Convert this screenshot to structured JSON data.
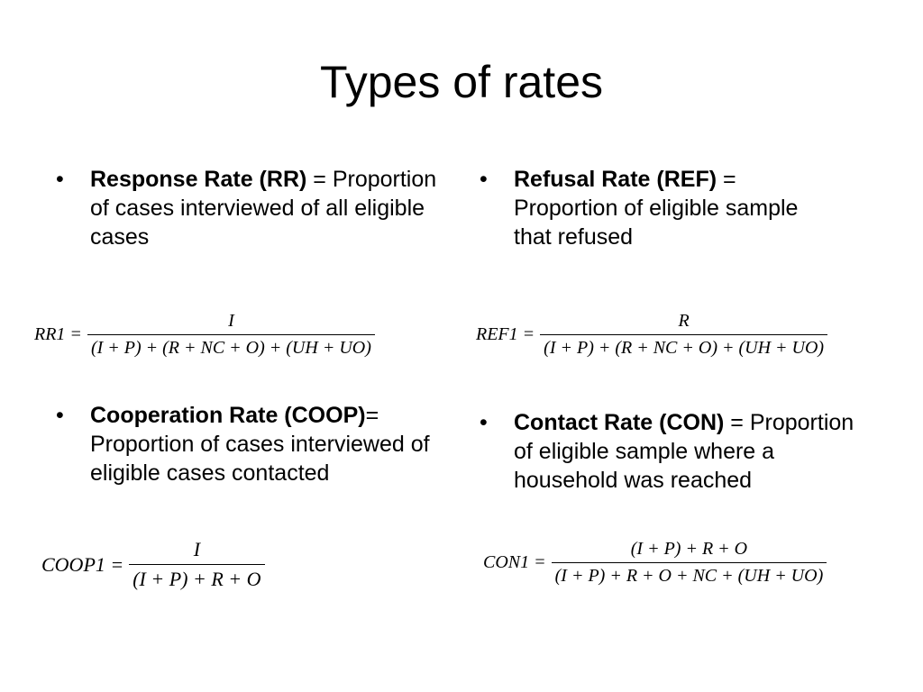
{
  "title": "Types of rates",
  "items": [
    {
      "term": "Response Rate (RR)",
      "definition": "= Proportion of cases interviewed of all eligible cases",
      "formula": {
        "lhs": "RR1 =",
        "numerator": "I",
        "denominator": "(I + P) + (R + NC + O) + (UH + UO)"
      }
    },
    {
      "term": "Cooperation Rate (COOP)",
      "definition": "= Proportion of cases interviewed of eligible cases contacted",
      "formula": {
        "lhs": "COOP1 =",
        "numerator": "I",
        "denominator": "(I + P) + R + O"
      }
    },
    {
      "term": "Refusal Rate (REF)",
      "definition": "= Proportion of eligible sample that refused",
      "formula": {
        "lhs": "REF1 =",
        "numerator": "R",
        "denominator": "(I + P) + (R + NC + O) + (UH + UO)"
      }
    },
    {
      "term": "Contact Rate (CON)",
      "definition": "= Proportion of eligible sample where a household was reached",
      "formula": {
        "lhs": "CON1 =",
        "numerator": "(I + P) + R + O",
        "denominator": "(I + P) + R + O + NC + (UH + UO)"
      }
    }
  ]
}
